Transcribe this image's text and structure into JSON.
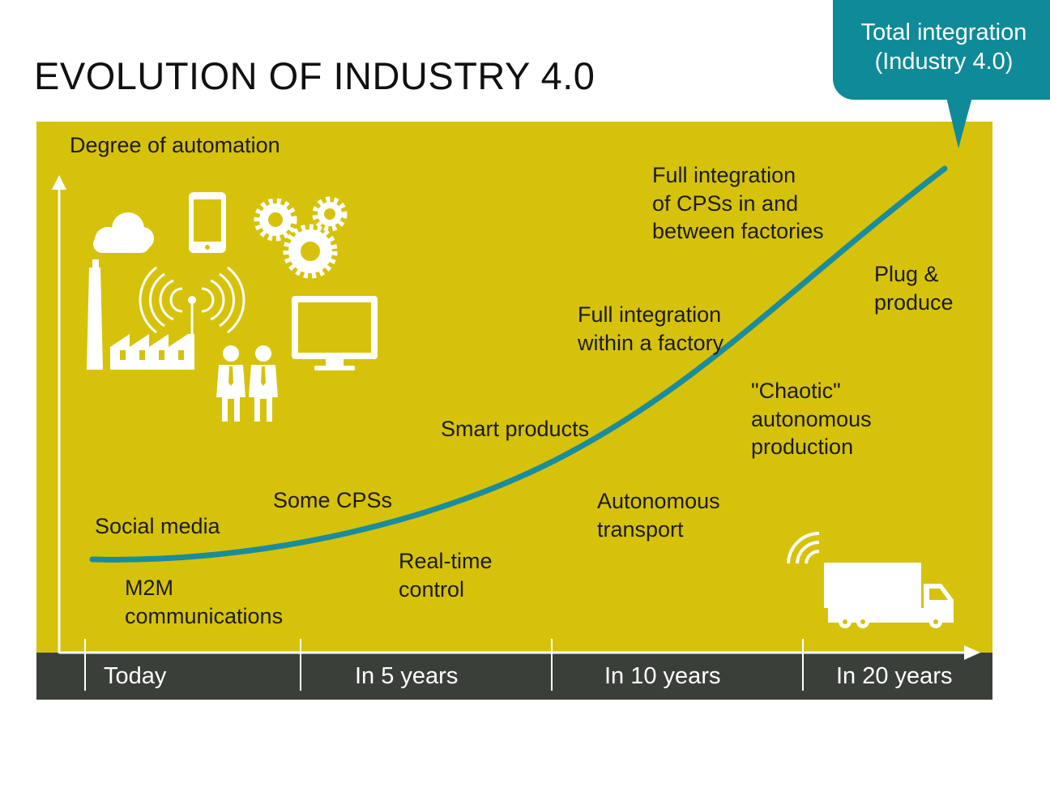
{
  "title": "EVOLUTION OF INDUSTRY 4.0",
  "callout": {
    "text": "Total integration\n(Industry 4.0)"
  },
  "axes": {
    "y_label": "Degree of automation",
    "x_ticks": [
      "Today",
      "In 5 years",
      "In 10 years",
      "In 20 years"
    ]
  },
  "labels": {
    "social_media": "Social media",
    "m2m": "M2M\ncommunications",
    "some_cps": "Some CPSs",
    "realtime": "Real-time\ncontrol",
    "smart_products": "Smart products",
    "autonomous_transport": "Autonomous\ntransport",
    "full_factory": "Full integration\nwithin a factory",
    "chaotic": "\"Chaotic\"\nautonomous\nproduction",
    "full_cps": "Full integration\nof CPSs in and\nbetween factories",
    "plug_produce": "Plug &\nproduce"
  },
  "icons": [
    "factory-icon",
    "smartphone-icon",
    "gears-icon",
    "wireless-signal-icon",
    "monitor-icon",
    "people-icon",
    "truck-icon"
  ],
  "colors": {
    "panel": "#d6c20a",
    "curve": "#1a8c9c",
    "callout": "#0f8a99",
    "timebar": "#3a3f3a",
    "icons": "#ffffff"
  }
}
